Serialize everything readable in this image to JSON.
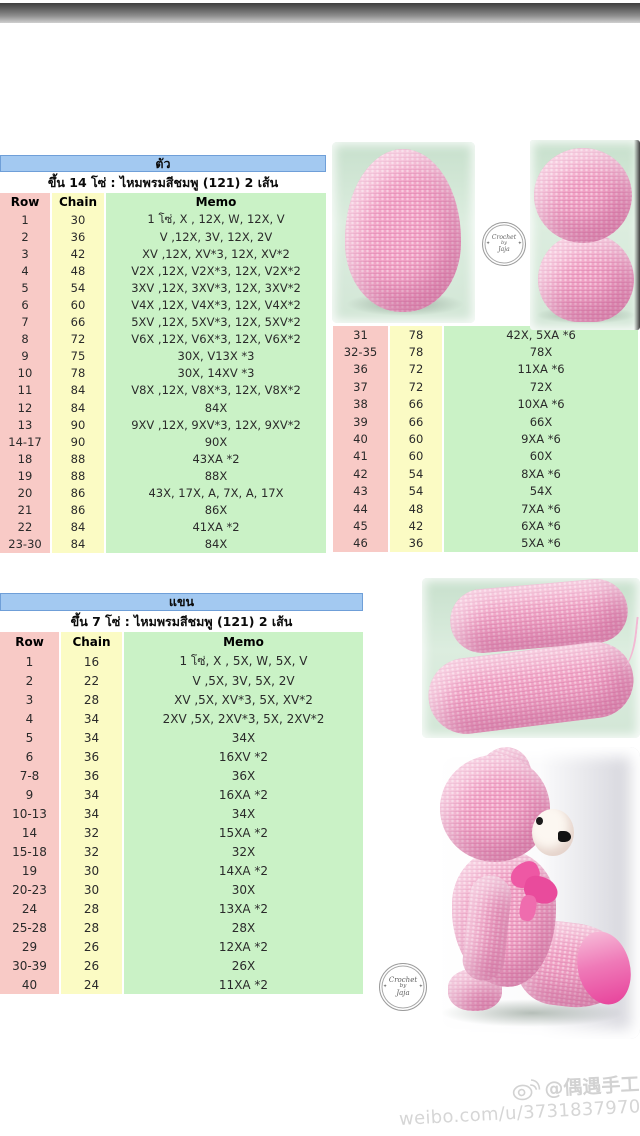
{
  "colors": {
    "title_blue": "#a3c9f1",
    "title_border": "#6f9fd8",
    "row_col_pink": "#f8cac6",
    "chain_col_yellow": "#fbfbc4",
    "memo_col_green": "#caf2c6",
    "photo_mint": "#d6e9d8",
    "yarn_pink": "#f2a3c6",
    "watermark_gray": "#d2d2d2"
  },
  "body_table": {
    "title": "ตัว",
    "subtitle": "ขึ้น 14 โซ่ :  ไหมพรมสีชมพู (121) 2 เส้น",
    "columns": [
      "Row",
      "Chain",
      "Memo"
    ],
    "rows": [
      [
        "1",
        "30",
        "1 โซ่, X , 12X, W, 12X, V"
      ],
      [
        "2",
        "36",
        "V ,12X, 3V, 12X, 2V"
      ],
      [
        "3",
        "42",
        "XV ,12X, XV*3, 12X, XV*2"
      ],
      [
        "4",
        "48",
        "V2X ,12X, V2X*3, 12X, V2X*2"
      ],
      [
        "5",
        "54",
        "3XV ,12X, 3XV*3, 12X, 3XV*2"
      ],
      [
        "6",
        "60",
        "V4X ,12X, V4X*3, 12X, V4X*2"
      ],
      [
        "7",
        "66",
        "5XV ,12X, 5XV*3, 12X, 5XV*2"
      ],
      [
        "8",
        "72",
        "V6X ,12X, V6X*3, 12X, V6X*2"
      ],
      [
        "9",
        "75",
        "30X, V13X *3"
      ],
      [
        "10",
        "78",
        "30X, 14XV *3"
      ],
      [
        "11",
        "84",
        "V8X ,12X, V8X*3, 12X, V8X*2"
      ],
      [
        "12",
        "84",
        "84X"
      ],
      [
        "13",
        "90",
        "9XV ,12X, 9XV*3, 12X, 9XV*2"
      ],
      [
        "14-17",
        "90",
        "90X"
      ],
      [
        "18",
        "88",
        "43XA *2"
      ],
      [
        "19",
        "88",
        "88X"
      ],
      [
        "20",
        "86",
        "43X, 17X, A, 7X, A, 17X"
      ],
      [
        "21",
        "86",
        "86X"
      ],
      [
        "22",
        "84",
        "41XA *2"
      ],
      [
        "23-30",
        "84",
        "84X"
      ]
    ],
    "continuation_rows": [
      [
        "31",
        "78",
        "42X, 5XA *6"
      ],
      [
        "32-35",
        "78",
        "78X"
      ],
      [
        "36",
        "72",
        "11XA *6"
      ],
      [
        "37",
        "72",
        "72X"
      ],
      [
        "38",
        "66",
        "10XA *6"
      ],
      [
        "39",
        "66",
        "66X"
      ],
      [
        "40",
        "60",
        "9XA *6"
      ],
      [
        "41",
        "60",
        "60X"
      ],
      [
        "42",
        "54",
        "8XA *6"
      ],
      [
        "43",
        "54",
        "54X"
      ],
      [
        "44",
        "48",
        "7XA *6"
      ],
      [
        "45",
        "42",
        "6XA *6"
      ],
      [
        "46",
        "36",
        "5XA *6"
      ]
    ]
  },
  "arm_table": {
    "title": "แขน",
    "subtitle": "ขึ้น 7 โซ่ :  ไหมพรมสีชมพู (121) 2 เส้น",
    "columns": [
      "Row",
      "Chain",
      "Memo"
    ],
    "rows": [
      [
        "1",
        "16",
        "1 โซ่, X , 5X, W, 5X, V"
      ],
      [
        "2",
        "22",
        "V ,5X, 3V, 5X, 2V"
      ],
      [
        "3",
        "28",
        "XV ,5X, XV*3, 5X, XV*2"
      ],
      [
        "4",
        "34",
        "2XV ,5X, 2XV*3, 5X, 2XV*2"
      ],
      [
        "5",
        "34",
        "34X"
      ],
      [
        "6",
        "36",
        "16XV *2"
      ],
      [
        "7-8",
        "36",
        "36X"
      ],
      [
        "9",
        "34",
        "16XA *2"
      ],
      [
        "10-13",
        "34",
        "34X"
      ],
      [
        "14",
        "32",
        "15XA *2"
      ],
      [
        "15-18",
        "32",
        "32X"
      ],
      [
        "19",
        "30",
        "14XA *2"
      ],
      [
        "20-23",
        "30",
        "30X"
      ],
      [
        "24",
        "28",
        "13XA *2"
      ],
      [
        "25-28",
        "28",
        "28X"
      ],
      [
        "29",
        "26",
        "12XA *2"
      ],
      [
        "30-39",
        "26",
        "26X"
      ],
      [
        "40",
        "24",
        "11XA *2"
      ]
    ]
  },
  "stamp": {
    "line1": "Crochet",
    "line2": "by",
    "line3": "Jaja",
    "star": "✦"
  },
  "weibo": {
    "handle": "@偶遇手工",
    "url": "weibo.com/u/3731837970"
  }
}
